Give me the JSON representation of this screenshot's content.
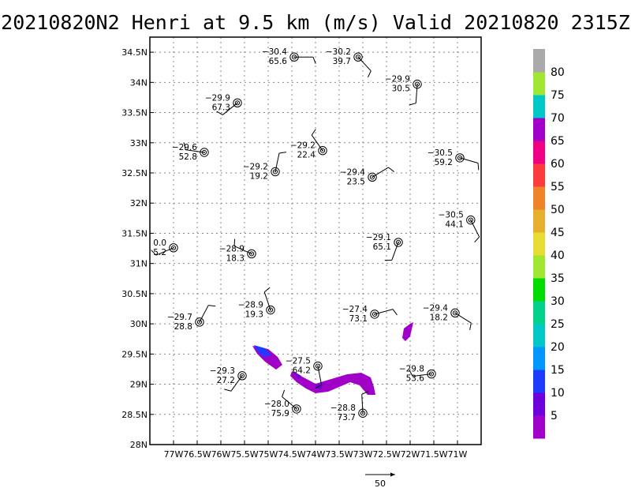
{
  "title": "20210820N2 Henri at 9.5 km (m/s) Valid 20210820 2315Z",
  "map": {
    "lon_range": [
      -77.5,
      -70.5
    ],
    "lat_range": [
      28.0,
      34.75
    ],
    "x_ticks": [
      {
        "lon": -77.0,
        "label": "77W"
      },
      {
        "lon": -76.5,
        "label": "76.5W"
      },
      {
        "lon": -76.0,
        "label": "76W"
      },
      {
        "lon": -75.5,
        "label": "75.5W"
      },
      {
        "lon": -75.0,
        "label": "75W"
      },
      {
        "lon": -74.5,
        "label": "74.5W"
      },
      {
        "lon": -74.0,
        "label": "74W"
      },
      {
        "lon": -73.5,
        "label": "73.5W"
      },
      {
        "lon": -73.0,
        "label": "73W"
      },
      {
        "lon": -72.5,
        "label": "72.5W"
      },
      {
        "lon": -72.0,
        "label": "72W"
      },
      {
        "lon": -71.5,
        "label": "71.5W"
      },
      {
        "lon": -71.0,
        "label": "71W"
      }
    ],
    "y_ticks": [
      {
        "lat": 28.0,
        "label": "28N"
      },
      {
        "lat": 28.5,
        "label": "28.5N"
      },
      {
        "lat": 29.0,
        "label": "29N"
      },
      {
        "lat": 29.5,
        "label": "29.5N"
      },
      {
        "lat": 30.0,
        "label": "30N"
      },
      {
        "lat": 30.5,
        "label": "30.5N"
      },
      {
        "lat": 31.0,
        "label": "31N"
      },
      {
        "lat": 31.5,
        "label": "31.5N"
      },
      {
        "lat": 32.0,
        "label": "32N"
      },
      {
        "lat": 32.5,
        "label": "32.5N"
      },
      {
        "lat": 33.0,
        "label": "33N"
      },
      {
        "lat": 33.5,
        "label": "33.5N"
      },
      {
        "lat": 34.0,
        "label": "34N"
      },
      {
        "lat": 34.5,
        "label": "34.5N"
      }
    ],
    "grid": "dotted"
  },
  "stations": [
    {
      "lon": -74.45,
      "lat": 34.42,
      "temp": "−30.4",
      "value": "65.6"
    },
    {
      "lon": -73.1,
      "lat": 34.42,
      "temp": "−30.2",
      "value": "39.7"
    },
    {
      "lon": -71.85,
      "lat": 33.97,
      "temp": "−29.9",
      "value": "30.5"
    },
    {
      "lon": -75.65,
      "lat": 33.66,
      "temp": "−29.9",
      "value": "67.3"
    },
    {
      "lon": -76.35,
      "lat": 32.84,
      "temp": "−29.6",
      "value": "52.8"
    },
    {
      "lon": -73.85,
      "lat": 32.87,
      "temp": "−29.2",
      "value": "22.4"
    },
    {
      "lon": -74.85,
      "lat": 32.52,
      "temp": "−29.2",
      "value": "19.2"
    },
    {
      "lon": -72.8,
      "lat": 32.43,
      "temp": "−29.4",
      "value": "23.5"
    },
    {
      "lon": -70.95,
      "lat": 32.75,
      "temp": "−30.5",
      "value": "59.2"
    },
    {
      "lon": -70.72,
      "lat": 31.72,
      "temp": "−30.5",
      "value": "44.1"
    },
    {
      "lon": -72.25,
      "lat": 31.35,
      "temp": "−29.1",
      "value": "65.1"
    },
    {
      "lon": -77.0,
      "lat": 31.26,
      "temp": "0.0",
      "value": "5.2"
    },
    {
      "lon": -75.35,
      "lat": 31.16,
      "temp": "−28.9",
      "value": "18.3"
    },
    {
      "lon": -74.95,
      "lat": 30.23,
      "temp": "−28.9",
      "value": "19.3"
    },
    {
      "lon": -76.45,
      "lat": 30.03,
      "temp": "−29.7",
      "value": "28.8"
    },
    {
      "lon": -72.75,
      "lat": 30.16,
      "temp": "−27.4",
      "value": "73.1"
    },
    {
      "lon": -71.05,
      "lat": 30.18,
      "temp": "−29.4",
      "value": "18.2"
    },
    {
      "lon": -73.95,
      "lat": 29.3,
      "temp": "−27.5",
      "value": "64.2"
    },
    {
      "lon": -75.55,
      "lat": 29.14,
      "temp": "−29.3",
      "value": "27.2"
    },
    {
      "lon": -71.55,
      "lat": 29.17,
      "temp": "−29.8",
      "value": "53.6"
    },
    {
      "lon": -74.4,
      "lat": 28.59,
      "temp": "−28.0",
      "value": "75.9"
    },
    {
      "lon": -73.0,
      "lat": 28.52,
      "temp": "−28.8",
      "value": "73.7"
    }
  ],
  "colorbar": {
    "labels": [
      "5",
      "10",
      "15",
      "20",
      "25",
      "30",
      "35",
      "40",
      "45",
      "50",
      "55",
      "60",
      "65",
      "70",
      "75",
      "80"
    ],
    "colors": [
      "#a000c8",
      "#6e00dc",
      "#1e3cff",
      "#0096ff",
      "#00c8c8",
      "#00d28c",
      "#00dc00",
      "#a0e632",
      "#e6dc32",
      "#e6af2d",
      "#f08228",
      "#fa3c3c",
      "#f00082",
      "#a000c8",
      "#00c8c8",
      "#a0e632",
      "#aaaaaa"
    ]
  },
  "reference_vector": {
    "label": "50"
  }
}
